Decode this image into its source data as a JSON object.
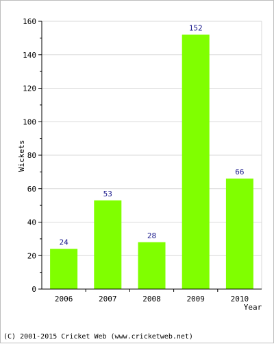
{
  "chart_data": {
    "type": "bar",
    "categories": [
      "2006",
      "2007",
      "2008",
      "2009",
      "2010"
    ],
    "values": [
      24,
      53,
      28,
      152,
      66
    ],
    "title": "",
    "xlabel": "Year",
    "ylabel": "Wickets",
    "ylim": [
      0,
      160
    ],
    "yticks": [
      0,
      20,
      40,
      60,
      80,
      100,
      120,
      140,
      160
    ],
    "grid": true,
    "bar_color": "#80ff00",
    "grid_color": "#d9d9d9",
    "label_color": "#1a1a8c"
  },
  "footer": {
    "text": "(C) 2001-2015 Cricket Web (www.cricketweb.net)"
  }
}
